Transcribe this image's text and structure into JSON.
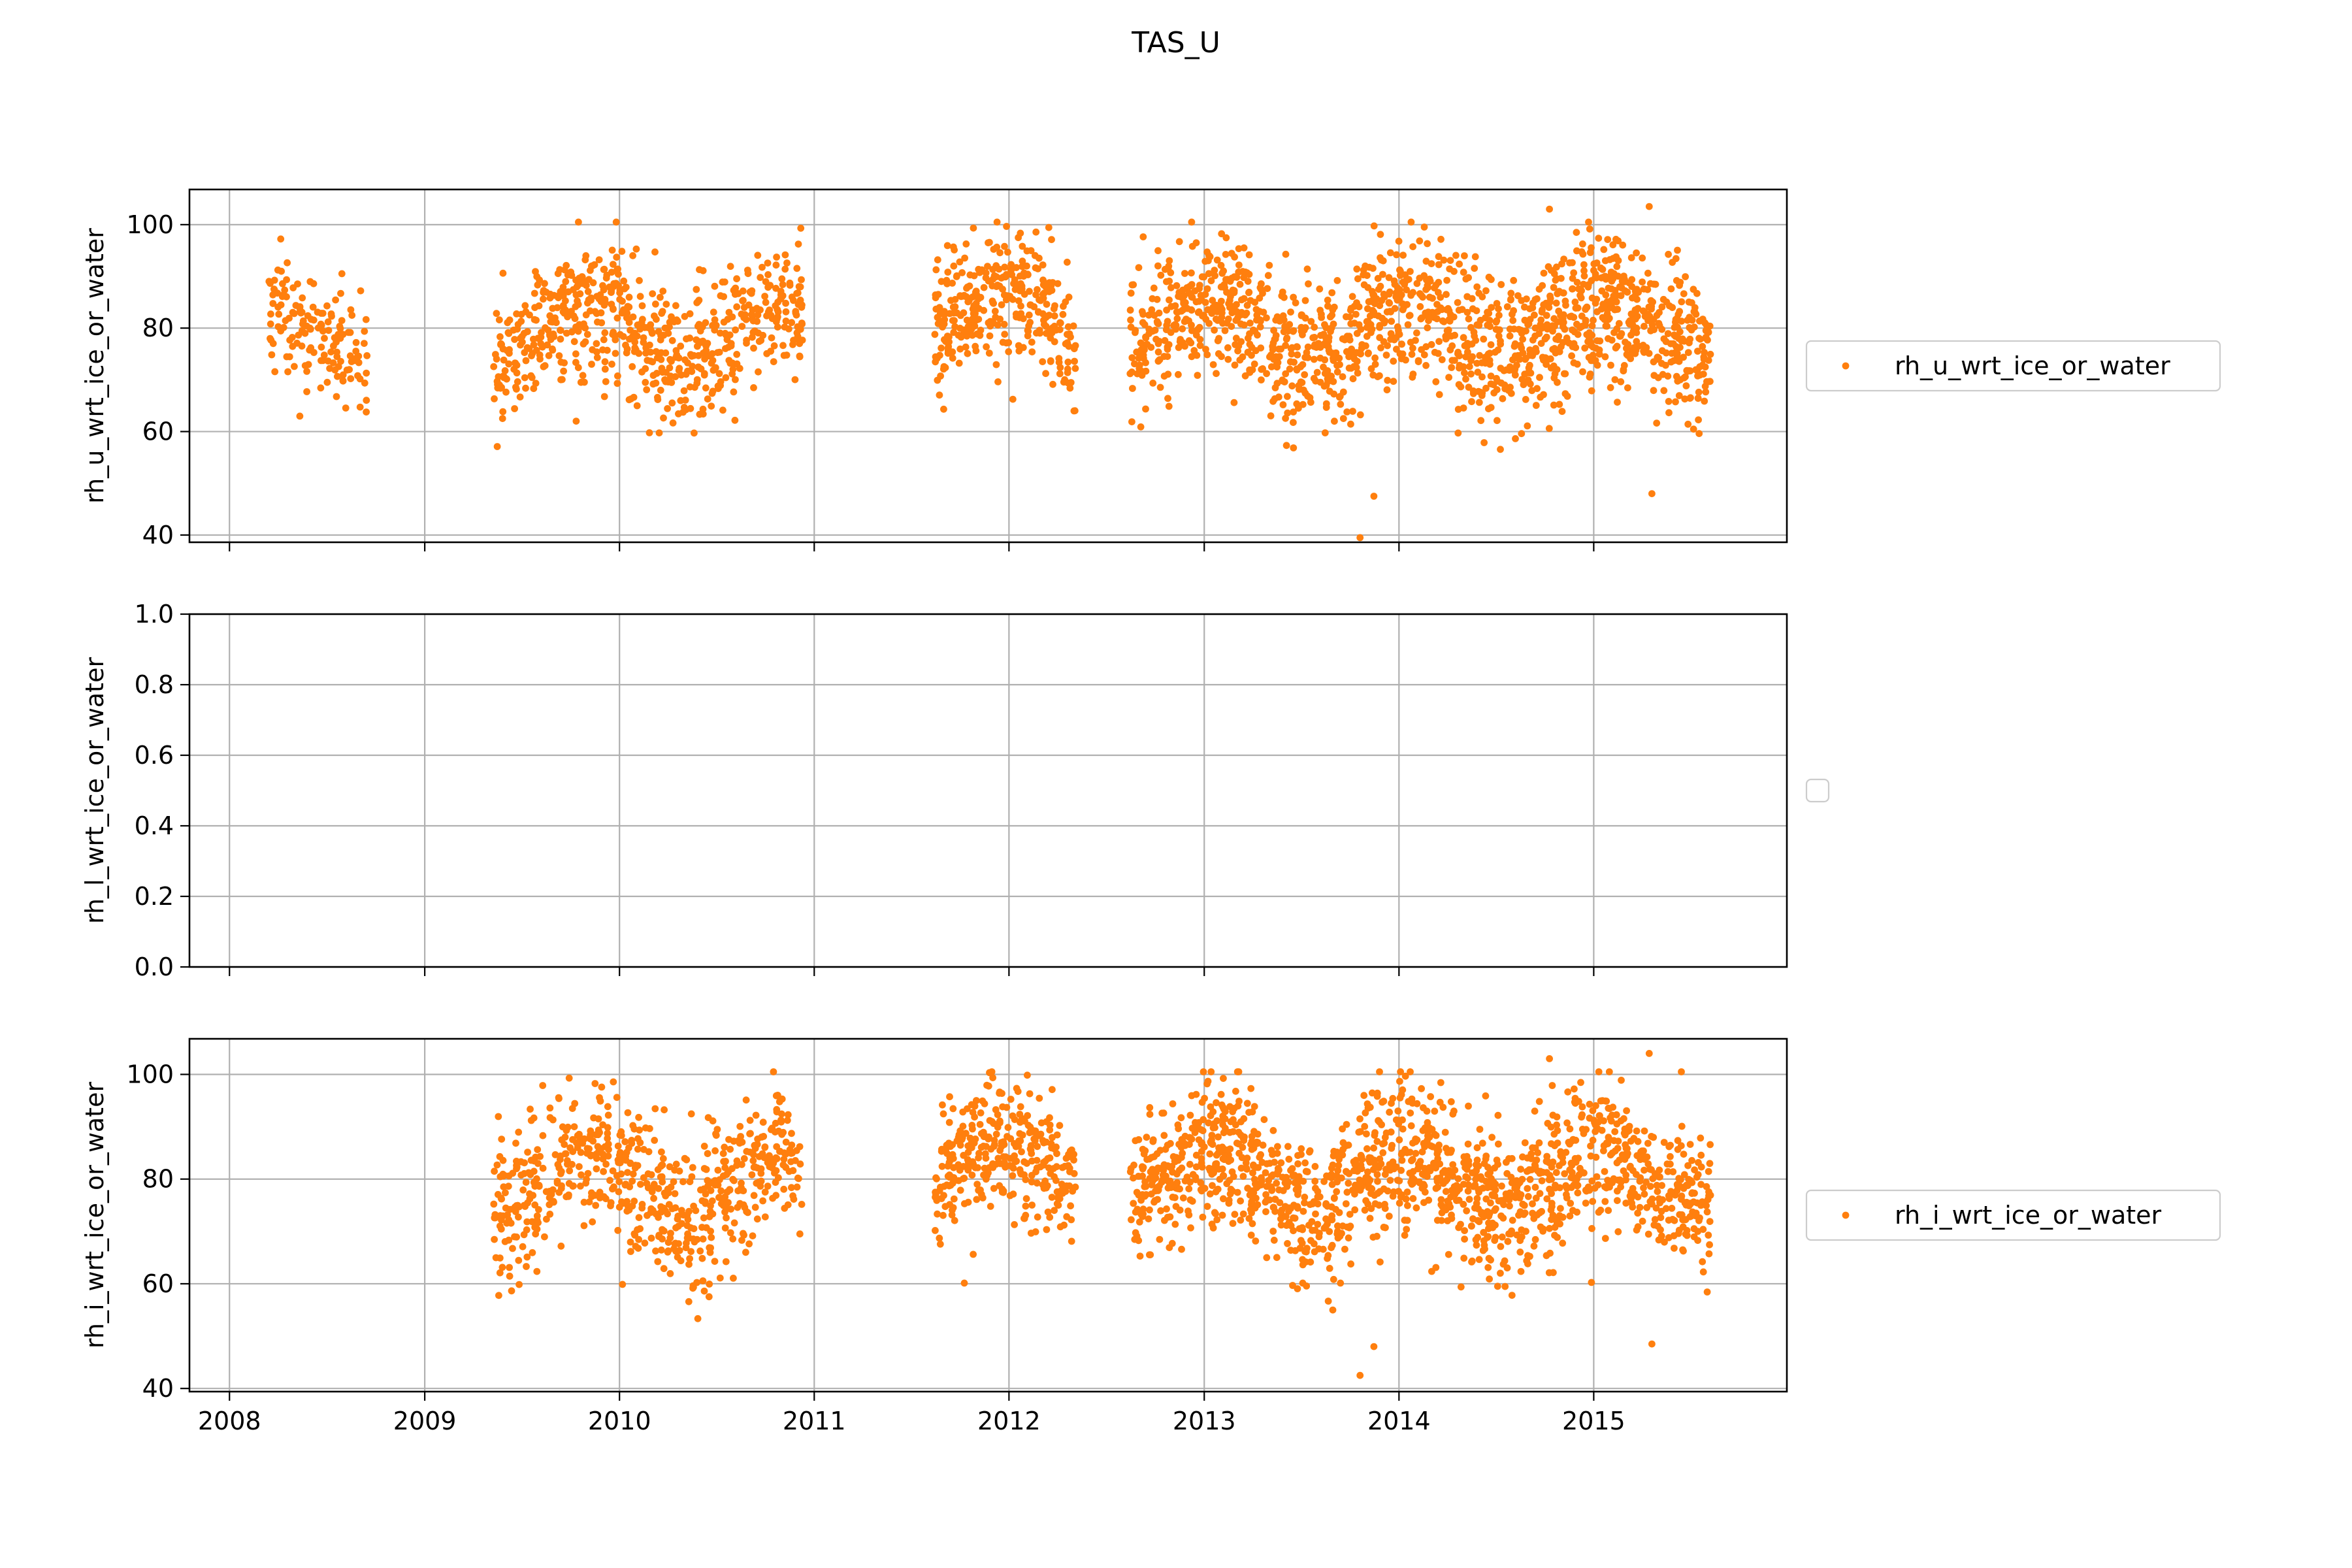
{
  "figure": {
    "title": "TAS_U",
    "marker_color": "#ff7f0e",
    "grid_color": "#b0b0b0",
    "legend_edge_color": "#cccccc"
  },
  "chart_data": [
    {
      "type": "scatter",
      "ylabel": "rh_u_wrt_ice_or_water",
      "ylim": [
        38.6,
        106.8
      ],
      "yticks": [
        40,
        60,
        80,
        100
      ],
      "ytick_labels": [
        "40",
        "60",
        "80",
        "100"
      ],
      "xlim": [
        "2007-10-18",
        "2015-12-29"
      ],
      "xticks": [
        "2008-01-01",
        "2009-01-01",
        "2010-01-01",
        "2011-01-01",
        "2012-01-01",
        "2013-01-01",
        "2014-01-01",
        "2015-01-01"
      ],
      "show_xtick_labels": false,
      "grid": true,
      "legend_position": "right",
      "series": [
        {
          "name": "rh_u_wrt_ice_or_water",
          "segments": [
            {
              "start": "2008-03-15",
              "end": "2008-09-15",
              "mean": 80,
              "amp": 4,
              "phase": 0.1,
              "spread": 9,
              "count": 150
            },
            {
              "start": "2009-05-10",
              "end": "2010-12-10",
              "mean": 79,
              "amp": 6,
              "phase": 0.4,
              "spread": 11,
              "count": 640
            },
            {
              "start": "2011-08-15",
              "end": "2012-05-05",
              "mean": 82,
              "amp": 5,
              "phase": 0.3,
              "spread": 10,
              "count": 330
            },
            {
              "start": "2012-08-15",
              "end": "2015-08-08",
              "mean": 80,
              "amp": 5,
              "phase": 0.2,
              "spread": 11,
              "count": 1450
            }
          ],
          "outliers": [
            {
              "date": "2013-10-20",
              "value": 39.5
            },
            {
              "date": "2013-11-15",
              "value": 47.5
            },
            {
              "date": "2015-04-20",
              "value": 48
            },
            {
              "date": "2015-04-15",
              "value": 103.5
            },
            {
              "date": "2014-10-10",
              "value": 103
            }
          ]
        }
      ]
    },
    {
      "type": "scatter",
      "ylabel": "rh_l_wrt_ice_or_water",
      "ylim": [
        0,
        1
      ],
      "yticks": [
        0,
        0.2,
        0.4,
        0.6,
        0.8,
        1.0
      ],
      "ytick_labels": [
        "0.0",
        "0.2",
        "0.4",
        "0.6",
        "0.8",
        "1.0"
      ],
      "xlim": [
        "2007-10-18",
        "2015-12-29"
      ],
      "xticks": [
        "2008-01-01",
        "2009-01-01",
        "2010-01-01",
        "2011-01-01",
        "2012-01-01",
        "2013-01-01",
        "2014-01-01",
        "2015-01-01"
      ],
      "show_xtick_labels": false,
      "grid": true,
      "legend_position": "right",
      "series": []
    },
    {
      "type": "scatter",
      "ylabel": "rh_i_wrt_ice_or_water",
      "ylim": [
        39.4,
        106.8
      ],
      "yticks": [
        40,
        60,
        80,
        100
      ],
      "ytick_labels": [
        "40",
        "60",
        "80",
        "100"
      ],
      "xlim": [
        "2007-10-18",
        "2015-12-29"
      ],
      "xticks": [
        "2008-01-01",
        "2009-01-01",
        "2010-01-01",
        "2011-01-01",
        "2012-01-01",
        "2013-01-01",
        "2014-01-01",
        "2015-01-01"
      ],
      "xtick_labels": [
        "2008",
        "2009",
        "2010",
        "2011",
        "2012",
        "2013",
        "2014",
        "2015"
      ],
      "show_xtick_labels": true,
      "grid": true,
      "legend_position": "right",
      "series": [
        {
          "name": "rh_i_wrt_ice_or_water",
          "segments": [
            {
              "start": "2009-05-10",
              "end": "2010-12-10",
              "mean": 79,
              "amp": 6,
              "phase": 0.4,
              "spread": 11,
              "count": 640
            },
            {
              "start": "2011-08-15",
              "end": "2012-05-05",
              "mean": 82,
              "amp": 5,
              "phase": 0.3,
              "spread": 10,
              "count": 330
            },
            {
              "start": "2012-08-15",
              "end": "2015-08-08",
              "mean": 80,
              "amp": 5,
              "phase": 0.2,
              "spread": 11,
              "count": 1450
            }
          ],
          "outliers": [
            {
              "date": "2013-10-20",
              "value": 42.5
            },
            {
              "date": "2013-11-15",
              "value": 48
            },
            {
              "date": "2015-04-20",
              "value": 48.5
            },
            {
              "date": "2015-04-15",
              "value": 104
            },
            {
              "date": "2014-10-10",
              "value": 103
            }
          ]
        }
      ]
    }
  ]
}
